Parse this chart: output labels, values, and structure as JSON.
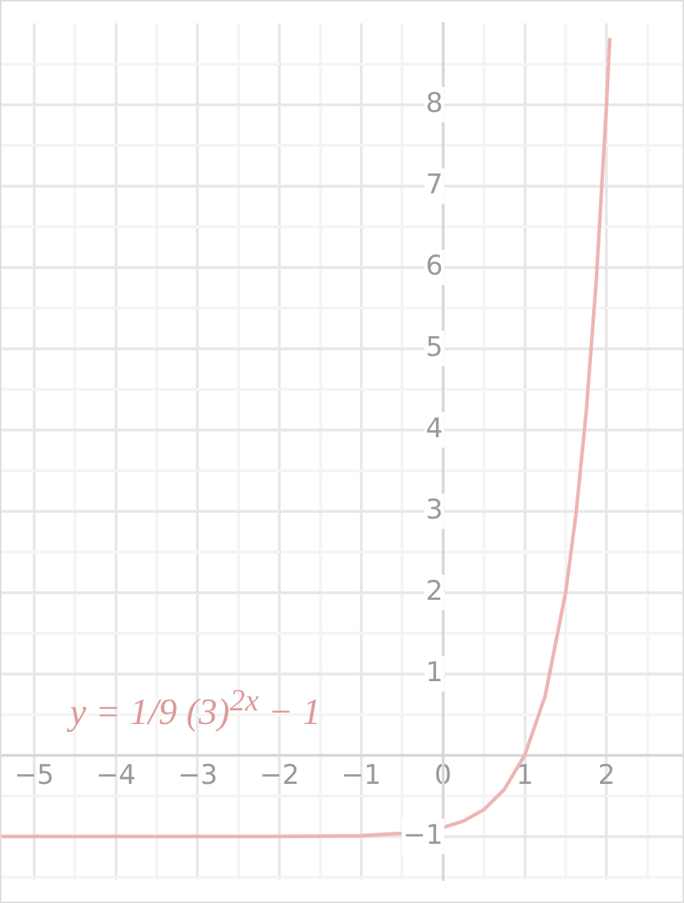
{
  "chart_data": {
    "type": "line",
    "annotations": [
      "y = 1/9 (3)$^{2x}$ − 1"
    ],
    "series": [
      {
        "color": "#eeb4b4",
        "x": [
          -5.4,
          -4,
          -3,
          -2,
          -1,
          -0.5,
          0,
          0.25,
          0.5,
          0.75,
          1,
          1.25,
          1.5,
          1.625,
          1.75,
          1.875,
          2,
          2.04
        ],
        "values": [
          -1,
          -1,
          -1,
          -1,
          -0.99,
          -0.96,
          -0.89,
          -0.81,
          -0.67,
          -0.42,
          0,
          0.73,
          2,
          2.95,
          4.2,
          5.84,
          8,
          8.82
        ]
      }
    ],
    "xlim": [
      -5.4,
      2.93
    ],
    "ylim": [
      -1.53,
      9
    ],
    "xticks": [
      -5,
      {
        "value": -4.5,
        "label": null
      },
      -4,
      {
        "value": -3.5,
        "label": null
      },
      -3,
      {
        "value": -2.5,
        "label": null
      },
      -2,
      {
        "value": -1.5,
        "label": null
      },
      -1,
      {
        "value": -0.5,
        "label": null
      },
      0,
      {
        "value": 0.5,
        "label": null
      },
      1,
      {
        "value": 1.5,
        "label": null
      },
      2,
      {
        "value": 2.5,
        "label": null
      }
    ],
    "yticks": [
      {
        "value": -1.5,
        "label": null
      },
      -1,
      {
        "value": -0.5,
        "label": null
      },
      {
        "value": 0,
        "label": null
      },
      {
        "value": 0.5,
        "label": null
      },
      1,
      {
        "value": 1.5,
        "label": null
      },
      2,
      {
        "value": 2.5,
        "label": null
      },
      3,
      {
        "value": 3.5,
        "label": null
      },
      4,
      {
        "value": 4.5,
        "label": null
      },
      5,
      {
        "value": 5.5,
        "label": null
      },
      6,
      {
        "value": 6.5,
        "label": null
      },
      7,
      {
        "value": 7.5,
        "label": null
      },
      8,
      {
        "value": 8.5,
        "label": null
      }
    ],
    "grid": true,
    "legend": false,
    "marker": "none",
    "line_style": "solid"
  }
}
